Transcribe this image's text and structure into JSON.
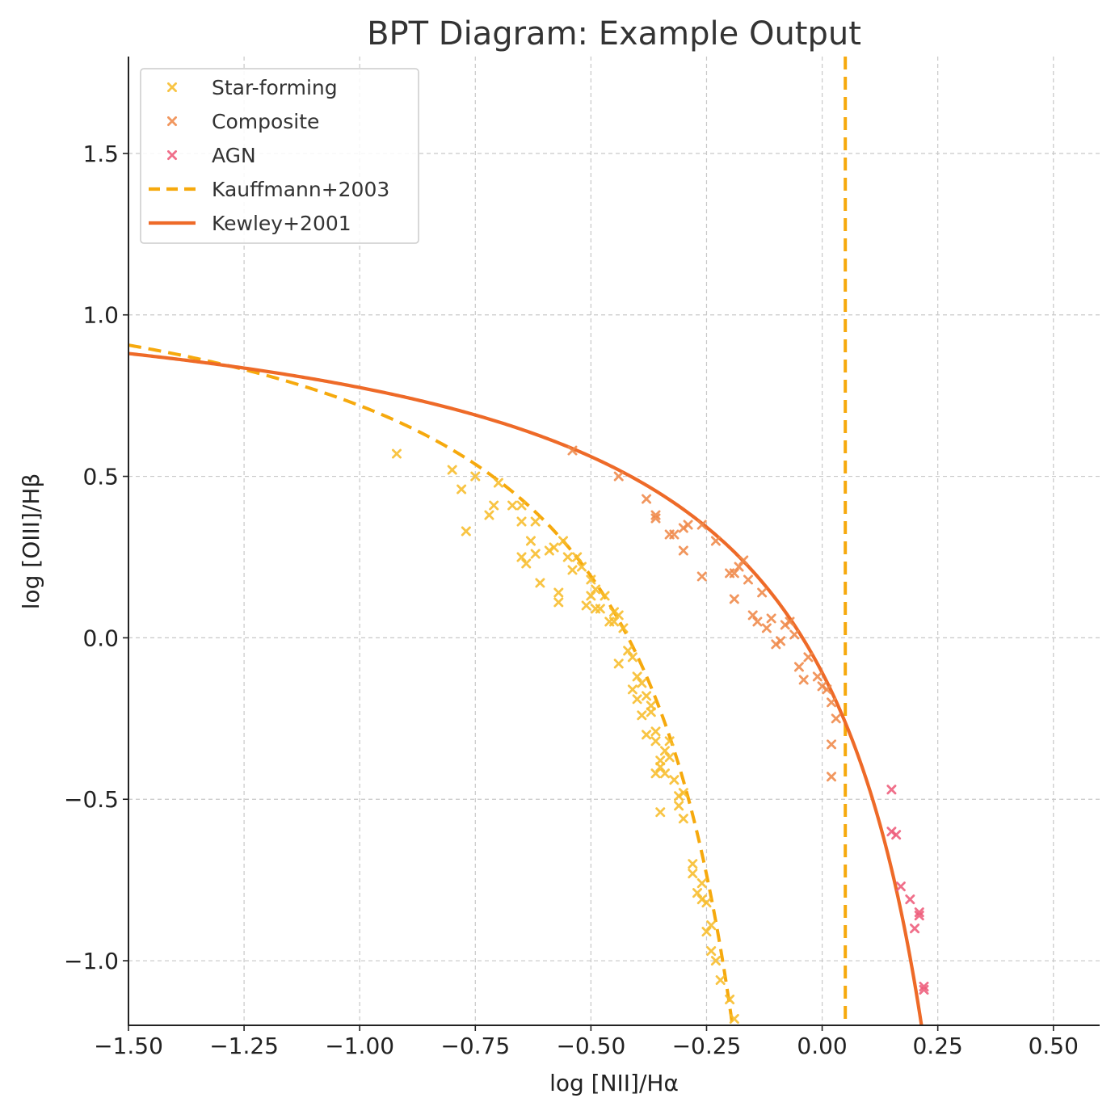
{
  "chart_data": {
    "type": "scatter",
    "title": "BPT Diagram: Example Output",
    "xlabel": "log [NII]/Hα",
    "ylabel": "log [OIII]/Hβ",
    "xlim": [
      -1.5,
      0.6
    ],
    "ylim": [
      -1.2,
      1.8
    ],
    "xticks": [
      -1.5,
      -1.25,
      -1.0,
      -0.75,
      -0.5,
      -0.25,
      0.0,
      0.25,
      0.5
    ],
    "xtick_labels": [
      "−1.50",
      "−1.25",
      "−1.00",
      "−0.75",
      "−0.50",
      "−0.25",
      "0.00",
      "0.25",
      "0.50"
    ],
    "yticks": [
      -1.0,
      -0.5,
      0.0,
      0.5,
      1.0,
      1.5
    ],
    "ytick_labels": [
      "−1.0",
      "−0.5",
      "0.0",
      "0.5",
      "1.0",
      "1.5"
    ],
    "grid": true,
    "legend_position": "top-left",
    "series": [
      {
        "name": "Star-forming",
        "kind": "scatter",
        "marker": "x",
        "color": "#F8BD2B",
        "points": [
          [
            -0.92,
            0.57
          ],
          [
            -0.8,
            0.52
          ],
          [
            -0.78,
            0.46
          ],
          [
            -0.77,
            0.33
          ],
          [
            -0.75,
            0.5
          ],
          [
            -0.72,
            0.38
          ],
          [
            -0.71,
            0.41
          ],
          [
            -0.7,
            0.48
          ],
          [
            -0.67,
            0.41
          ],
          [
            -0.65,
            0.41
          ],
          [
            -0.65,
            0.36
          ],
          [
            -0.65,
            0.25
          ],
          [
            -0.64,
            0.23
          ],
          [
            -0.63,
            0.3
          ],
          [
            -0.62,
            0.36
          ],
          [
            -0.62,
            0.26
          ],
          [
            -0.61,
            0.17
          ],
          [
            -0.59,
            0.27
          ],
          [
            -0.58,
            0.28
          ],
          [
            -0.57,
            0.14
          ],
          [
            -0.57,
            0.11
          ],
          [
            -0.56,
            0.3
          ],
          [
            -0.55,
            0.25
          ],
          [
            -0.54,
            0.21
          ],
          [
            -0.53,
            0.25
          ],
          [
            -0.52,
            0.22
          ],
          [
            -0.51,
            0.1
          ],
          [
            -0.5,
            0.13
          ],
          [
            -0.5,
            0.18
          ],
          [
            -0.49,
            0.09
          ],
          [
            -0.49,
            0.15
          ],
          [
            -0.48,
            0.09
          ],
          [
            -0.47,
            0.13
          ],
          [
            -0.46,
            0.05
          ],
          [
            -0.45,
            0.08
          ],
          [
            -0.45,
            0.05
          ],
          [
            -0.44,
            0.07
          ],
          [
            -0.44,
            -0.08
          ],
          [
            -0.43,
            0.03
          ],
          [
            -0.42,
            -0.04
          ],
          [
            -0.41,
            -0.06
          ],
          [
            -0.41,
            -0.16
          ],
          [
            -0.4,
            -0.12
          ],
          [
            -0.4,
            -0.19
          ],
          [
            -0.39,
            -0.14
          ],
          [
            -0.39,
            -0.24
          ],
          [
            -0.38,
            -0.18
          ],
          [
            -0.38,
            -0.3
          ],
          [
            -0.37,
            -0.21
          ],
          [
            -0.37,
            -0.23
          ],
          [
            -0.36,
            -0.29
          ],
          [
            -0.36,
            -0.32
          ],
          [
            -0.36,
            -0.42
          ],
          [
            -0.35,
            -0.38
          ],
          [
            -0.35,
            -0.54
          ],
          [
            -0.35,
            -0.4
          ],
          [
            -0.34,
            -0.42
          ],
          [
            -0.34,
            -0.35
          ],
          [
            -0.33,
            -0.37
          ],
          [
            -0.33,
            -0.32
          ],
          [
            -0.32,
            -0.44
          ],
          [
            -0.31,
            -0.49
          ],
          [
            -0.31,
            -0.52
          ],
          [
            -0.3,
            -0.48
          ],
          [
            -0.3,
            -0.56
          ],
          [
            -0.28,
            -0.7
          ],
          [
            -0.28,
            -0.73
          ],
          [
            -0.27,
            -0.79
          ],
          [
            -0.26,
            -0.76
          ],
          [
            -0.26,
            -0.81
          ],
          [
            -0.25,
            -0.82
          ],
          [
            -0.25,
            -0.91
          ],
          [
            -0.24,
            -0.97
          ],
          [
            -0.24,
            -0.89
          ],
          [
            -0.23,
            -1.0
          ],
          [
            -0.22,
            -1.06
          ],
          [
            -0.2,
            -1.12
          ],
          [
            -0.19,
            -1.18
          ]
        ]
      },
      {
        "name": "Composite",
        "kind": "scatter",
        "marker": "x",
        "color": "#F0894A",
        "points": [
          [
            -0.54,
            0.58
          ],
          [
            -0.44,
            0.5
          ],
          [
            -0.38,
            0.43
          ],
          [
            -0.36,
            0.37
          ],
          [
            -0.36,
            0.38
          ],
          [
            -0.33,
            0.32
          ],
          [
            -0.32,
            0.32
          ],
          [
            -0.3,
            0.34
          ],
          [
            -0.3,
            0.27
          ],
          [
            -0.29,
            0.35
          ],
          [
            -0.26,
            0.35
          ],
          [
            -0.26,
            0.19
          ],
          [
            -0.23,
            0.3
          ],
          [
            -0.2,
            0.2
          ],
          [
            -0.19,
            0.2
          ],
          [
            -0.19,
            0.12
          ],
          [
            -0.18,
            0.22
          ],
          [
            -0.17,
            0.24
          ],
          [
            -0.16,
            0.18
          ],
          [
            -0.15,
            0.07
          ],
          [
            -0.14,
            0.05
          ],
          [
            -0.13,
            0.14
          ],
          [
            -0.12,
            0.03
          ],
          [
            -0.11,
            0.06
          ],
          [
            -0.1,
            -0.02
          ],
          [
            -0.09,
            -0.01
          ],
          [
            -0.08,
            0.04
          ],
          [
            -0.07,
            0.05
          ],
          [
            -0.06,
            0.01
          ],
          [
            -0.05,
            -0.09
          ],
          [
            -0.04,
            -0.13
          ],
          [
            -0.03,
            -0.06
          ],
          [
            -0.01,
            -0.12
          ],
          [
            0.0,
            -0.15
          ],
          [
            0.01,
            -0.16
          ],
          [
            0.02,
            -0.2
          ],
          [
            0.02,
            -0.33
          ],
          [
            0.02,
            -0.43
          ],
          [
            0.03,
            -0.25
          ]
        ]
      },
      {
        "name": "AGN",
        "kind": "scatter",
        "marker": "x",
        "color": "#EE5C7A",
        "points": [
          [
            0.15,
            -0.47
          ],
          [
            0.15,
            -0.6
          ],
          [
            0.16,
            -0.61
          ],
          [
            0.17,
            -0.77
          ],
          [
            0.19,
            -0.81
          ],
          [
            0.2,
            -0.9
          ],
          [
            0.21,
            -0.85
          ],
          [
            0.21,
            -0.86
          ],
          [
            0.22,
            -1.08
          ],
          [
            0.22,
            -1.09
          ]
        ]
      },
      {
        "name": "Kauffmann+2003",
        "kind": "line",
        "style": "dashed",
        "color": "#F6A90D",
        "equation": "0.61/(x-0.05)+1.3",
        "asymptote_x": 0.05
      },
      {
        "name": "Kewley+2001",
        "kind": "line",
        "style": "solid",
        "color": "#EE6A28",
        "equation": "0.61/(x-0.47)+1.19"
      }
    ]
  }
}
